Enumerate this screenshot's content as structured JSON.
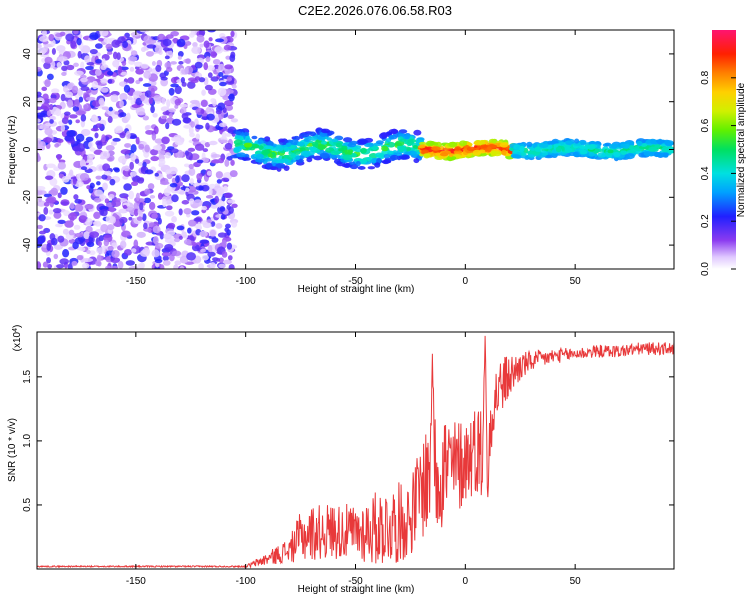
{
  "title": "C2E2.2026.076.06.58.R03",
  "chart_data": [
    {
      "type": "heatmap",
      "name": "spectrogram",
      "xlabel": "Height of straight line (km)",
      "ylabel": "Frequency (Hz)",
      "xlim": [
        -195,
        95
      ],
      "ylim": [
        -50,
        50
      ],
      "xticks": [
        -150,
        -100,
        -50,
        0,
        50
      ],
      "yticks": [
        -40,
        -20,
        0,
        20,
        40
      ],
      "colorbar": {
        "label": "Normalized spectral amplitude",
        "range": [
          0,
          1
        ],
        "ticks": [
          "0.0",
          "0.2",
          "0.4",
          "0.6",
          "0.8"
        ],
        "tick_values": [
          0.0,
          0.2,
          0.4,
          0.6,
          0.8
        ]
      },
      "description_bands": [
        {
          "x_range": [
            -195,
            -105
          ],
          "freq_range": [
            -50,
            50
          ],
          "amplitude": [
            0.0,
            0.2
          ]
        },
        {
          "x_range": [
            -105,
            -20
          ],
          "freq_center": 0,
          "freq_halfwidth": 6,
          "amplitude": [
            0.2,
            0.6
          ]
        },
        {
          "x_range": [
            -20,
            22
          ],
          "freq_center": 0,
          "freq_halfwidth": 3,
          "amplitude": [
            0.6,
            1.0
          ]
        },
        {
          "x_range": [
            22,
            95
          ],
          "freq_center": 0,
          "freq_halfwidth": 3,
          "amplitude": [
            0.3,
            0.5
          ]
        }
      ]
    },
    {
      "type": "line",
      "name": "snr",
      "xlabel": "Height of straight line (km)",
      "ylabel": "SNR (10 * v/v)",
      "multiplier": "(x10",
      "multiplier_exp": "4",
      "multiplier_close": ")",
      "xlim": [
        -195,
        95
      ],
      "ylim": [
        0,
        1.85
      ],
      "xticks": [
        -150,
        -100,
        -50,
        0,
        50
      ],
      "yticks": [
        0.5,
        1.0,
        1.5
      ],
      "ytick_labels": [
        "0.5",
        "1.0",
        "1.5"
      ],
      "color": "#e8393a",
      "envelope": {
        "x": [
          -195,
          -100,
          -98,
          -90,
          -80,
          -75,
          -70,
          -60,
          -50,
          -40,
          -30,
          -25,
          -22,
          -18,
          -15,
          -10,
          -5,
          0,
          5,
          8,
          10,
          12,
          15,
          20,
          25,
          30,
          40,
          50,
          60,
          70,
          80,
          95
        ],
        "mid": [
          0.02,
          0.02,
          0.03,
          0.08,
          0.15,
          0.25,
          0.28,
          0.3,
          0.28,
          0.32,
          0.36,
          0.4,
          0.55,
          0.7,
          0.75,
          0.8,
          0.78,
          0.85,
          0.95,
          0.9,
          1.05,
          1.25,
          1.4,
          1.5,
          1.58,
          1.62,
          1.66,
          1.68,
          1.7,
          1.7,
          1.72,
          1.72
        ],
        "amp": [
          0.005,
          0.006,
          0.02,
          0.05,
          0.1,
          0.2,
          0.22,
          0.22,
          0.22,
          0.3,
          0.32,
          0.3,
          0.35,
          0.45,
          0.5,
          0.5,
          0.4,
          0.35,
          0.35,
          0.4,
          0.4,
          0.3,
          0.25,
          0.18,
          0.12,
          0.08,
          0.06,
          0.05,
          0.05,
          0.05,
          0.05,
          0.05
        ]
      },
      "notable_points": [
        {
          "x": 10,
          "y": 0.4,
          "note": "dip"
        },
        {
          "x": 9,
          "y": 1.82,
          "note": "peak"
        },
        {
          "x": -15,
          "y": 1.68,
          "note": "spike"
        }
      ]
    }
  ]
}
